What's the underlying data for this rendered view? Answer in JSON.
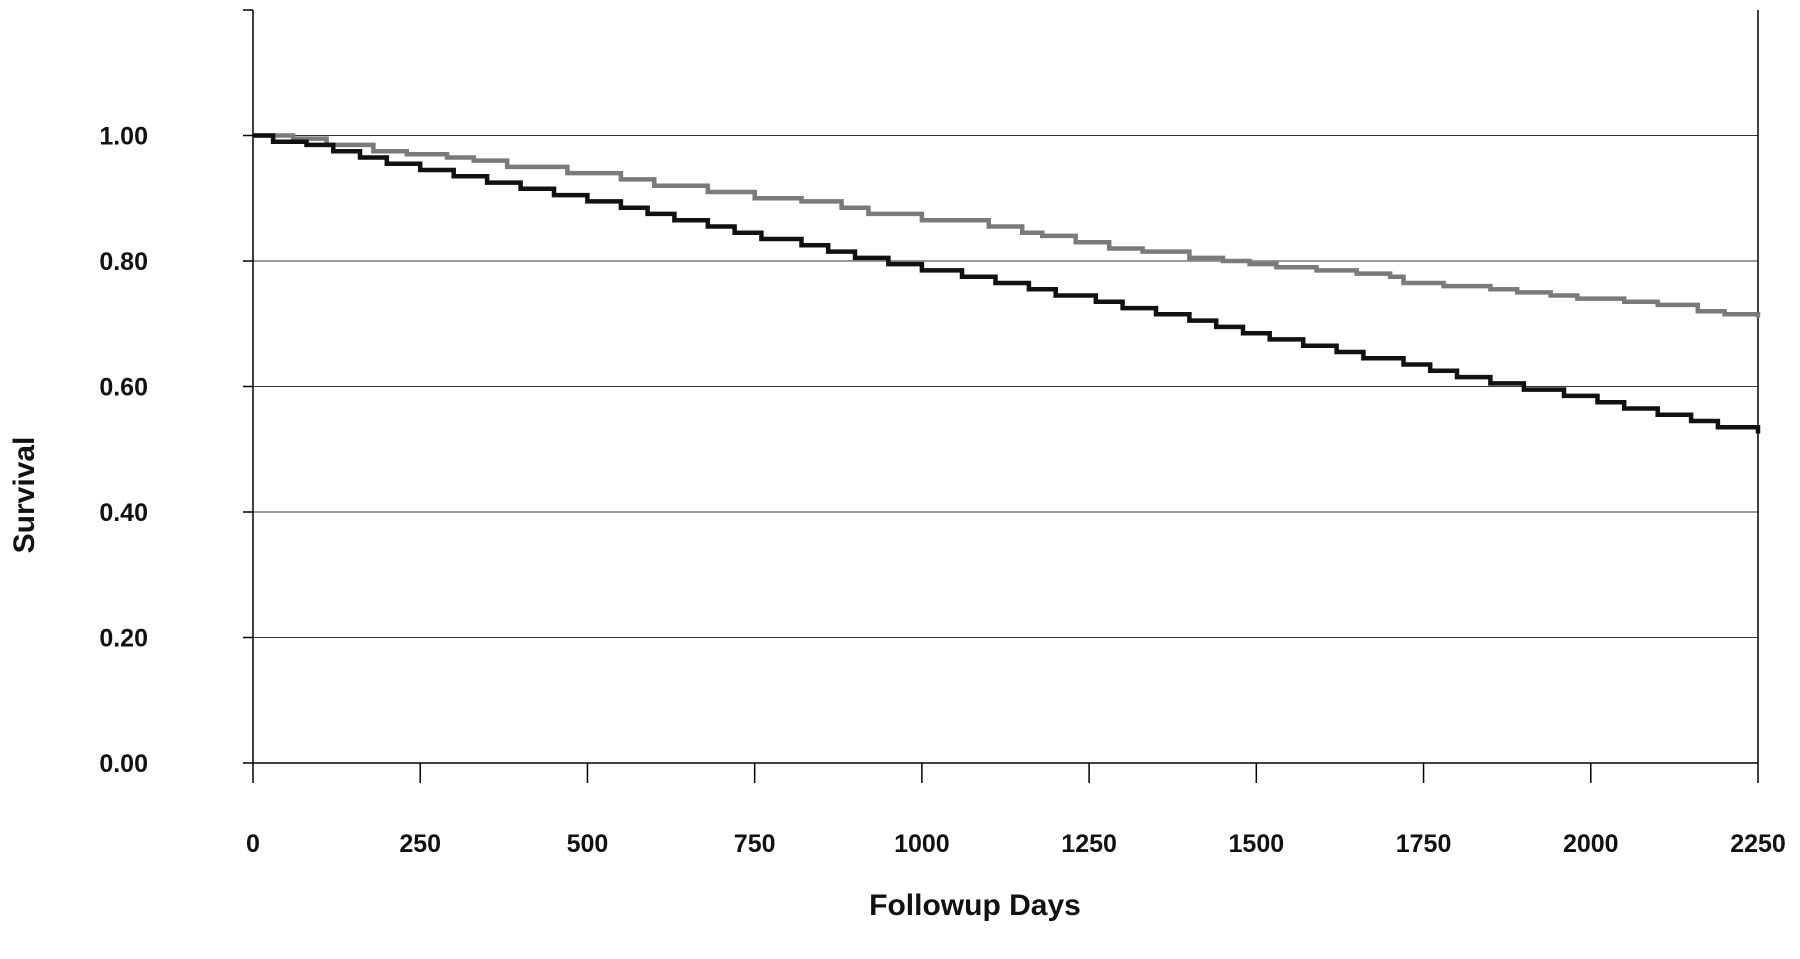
{
  "chart_data": {
    "type": "line",
    "step": true,
    "xlabel": "Followup Days",
    "ylabel": "Survival",
    "xlim": [
      0,
      2250
    ],
    "ylim": [
      0,
      1.2
    ],
    "x_ticks": [
      "0",
      "250",
      "500",
      "750",
      "1000",
      "1250",
      "1500",
      "1750",
      "2000",
      "2250"
    ],
    "y_ticks": [
      "0.00",
      "0.20",
      "0.40",
      "0.60",
      "0.80",
      "1.00"
    ],
    "gridlines": "horizontal",
    "legend": "none",
    "series": [
      {
        "color": "#7a7a7a",
        "x": [
          0,
          60,
          110,
          180,
          230,
          290,
          330,
          380,
          470,
          550,
          600,
          680,
          750,
          820,
          880,
          920,
          1000,
          1100,
          1150,
          1180,
          1230,
          1280,
          1330,
          1400,
          1450,
          1490,
          1530,
          1590,
          1650,
          1700,
          1720,
          1780,
          1850,
          1890,
          1940,
          1980,
          2050,
          2100,
          2160,
          2200,
          2250
        ],
        "y": [
          1.0,
          0.995,
          0.985,
          0.975,
          0.97,
          0.965,
          0.96,
          0.95,
          0.94,
          0.93,
          0.92,
          0.91,
          0.9,
          0.895,
          0.885,
          0.875,
          0.865,
          0.855,
          0.845,
          0.84,
          0.83,
          0.82,
          0.815,
          0.805,
          0.8,
          0.795,
          0.79,
          0.785,
          0.78,
          0.775,
          0.765,
          0.76,
          0.755,
          0.75,
          0.745,
          0.74,
          0.735,
          0.73,
          0.72,
          0.715,
          0.71
        ]
      },
      {
        "color": "#111111",
        "x": [
          0,
          30,
          80,
          120,
          160,
          200,
          250,
          300,
          350,
          400,
          450,
          500,
          550,
          590,
          630,
          680,
          720,
          760,
          820,
          860,
          900,
          950,
          1000,
          1060,
          1110,
          1160,
          1200,
          1260,
          1300,
          1350,
          1400,
          1440,
          1480,
          1520,
          1570,
          1620,
          1660,
          1720,
          1760,
          1800,
          1850,
          1900,
          1960,
          2010,
          2050,
          2100,
          2150,
          2190,
          2250
        ],
        "y": [
          1.0,
          0.99,
          0.985,
          0.975,
          0.965,
          0.955,
          0.945,
          0.935,
          0.925,
          0.915,
          0.905,
          0.895,
          0.885,
          0.875,
          0.865,
          0.855,
          0.845,
          0.835,
          0.825,
          0.815,
          0.805,
          0.795,
          0.785,
          0.775,
          0.765,
          0.755,
          0.745,
          0.735,
          0.725,
          0.715,
          0.705,
          0.695,
          0.685,
          0.675,
          0.665,
          0.655,
          0.645,
          0.635,
          0.625,
          0.615,
          0.605,
          0.595,
          0.585,
          0.575,
          0.565,
          0.555,
          0.545,
          0.535,
          0.525
        ]
      }
    ]
  }
}
